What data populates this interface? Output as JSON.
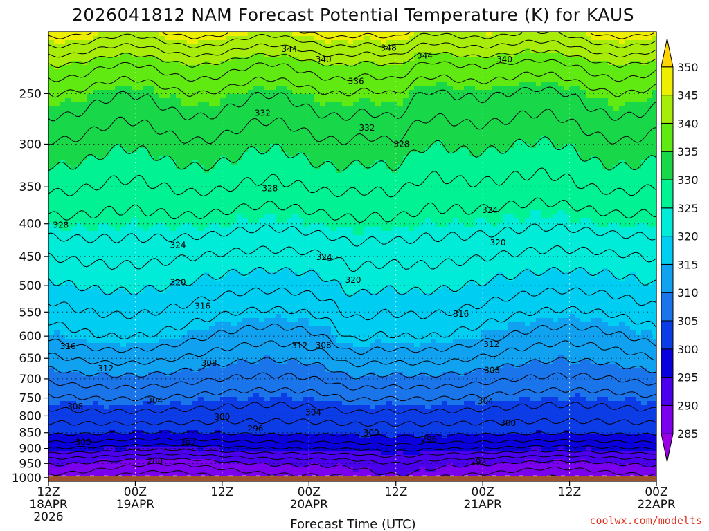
{
  "chart_data": {
    "type": "heatmap",
    "title": "2026041812 NAM Forecast Potential Temperature (K) for KAUS",
    "xlabel": "Forecast Time (UTC)",
    "ylabel": "",
    "x_ticks": [
      {
        "hours": 0,
        "line1": "12Z",
        "line2": "18APR",
        "line3": "2026"
      },
      {
        "hours": 12,
        "line1": "00Z",
        "line2": "19APR",
        "line3": ""
      },
      {
        "hours": 24,
        "line1": "12Z",
        "line2": "",
        "line3": ""
      },
      {
        "hours": 36,
        "line1": "00Z",
        "line2": "20APR",
        "line3": ""
      },
      {
        "hours": 48,
        "line1": "12Z",
        "line2": "",
        "line3": ""
      },
      {
        "hours": 60,
        "line1": "00Z",
        "line2": "21APR",
        "line3": ""
      },
      {
        "hours": 72,
        "line1": "12Z",
        "line2": "",
        "line3": ""
      },
      {
        "hours": 84,
        "line1": "00Z",
        "line2": "22APR",
        "line3": ""
      }
    ],
    "x_range_hours": [
      0,
      84
    ],
    "y_pressure_levels": [
      250,
      300,
      350,
      400,
      450,
      500,
      550,
      600,
      650,
      700,
      750,
      800,
      850,
      900,
      950,
      1000
    ],
    "y_range_hpa": [
      200,
      1013
    ],
    "log_pressure_axis": true,
    "surface_pressure_hpa": 994,
    "surface_color": "#a0522d",
    "colorbar": {
      "ticks": [
        350,
        345,
        340,
        335,
        330,
        325,
        320,
        315,
        310,
        305,
        300,
        295,
        290,
        285
      ],
      "bins": [
        {
          "min": 280,
          "max": 285,
          "color": "#9a00e6"
        },
        {
          "min": 285,
          "max": 290,
          "color": "#7a00ee"
        },
        {
          "min": 290,
          "max": 295,
          "color": "#4a00ea"
        },
        {
          "min": 295,
          "max": 300,
          "color": "#0a00dc"
        },
        {
          "min": 300,
          "max": 305,
          "color": "#0c3ce6"
        },
        {
          "min": 305,
          "max": 310,
          "color": "#1a74ea"
        },
        {
          "min": 310,
          "max": 315,
          "color": "#10a2f0"
        },
        {
          "min": 315,
          "max": 320,
          "color": "#00cdf2"
        },
        {
          "min": 320,
          "max": 325,
          "color": "#00ecd8"
        },
        {
          "min": 325,
          "max": 330,
          "color": "#00f292"
        },
        {
          "min": 330,
          "max": 335,
          "color": "#18d84a"
        },
        {
          "min": 335,
          "max": 340,
          "color": "#60ea12"
        },
        {
          "min": 340,
          "max": 345,
          "color": "#a8ec0a"
        },
        {
          "min": 345,
          "max": 350,
          "color": "#eeee00"
        },
        {
          "min": 350,
          "max": 355,
          "color": "#ffd400"
        }
      ]
    },
    "profile_1000_to_200": [
      {
        "p": 1000,
        "theta": 287.5
      },
      {
        "p": 975,
        "theta": 289
      },
      {
        "p": 950,
        "theta": 290.5
      },
      {
        "p": 925,
        "theta": 293
      },
      {
        "p": 900,
        "theta": 296
      },
      {
        "p": 875,
        "theta": 298.5
      },
      {
        "p": 850,
        "theta": 300.5
      },
      {
        "p": 800,
        "theta": 303
      },
      {
        "p": 750,
        "theta": 305.5
      },
      {
        "p": 700,
        "theta": 308.5
      },
      {
        "p": 650,
        "theta": 311.5
      },
      {
        "p": 600,
        "theta": 314.5
      },
      {
        "p": 550,
        "theta": 317
      },
      {
        "p": 500,
        "theta": 319.5
      },
      {
        "p": 450,
        "theta": 322
      },
      {
        "p": 400,
        "theta": 325
      },
      {
        "p": 350,
        "theta": 328
      },
      {
        "p": 300,
        "theta": 331
      },
      {
        "p": 250,
        "theta": 335
      },
      {
        "p": 225,
        "theta": 339
      },
      {
        "p": 200,
        "theta": 346
      }
    ],
    "contour_labels": [
      {
        "text": "344",
        "h": 33.3,
        "p": 213
      },
      {
        "text": "348",
        "h": 47.0,
        "p": 212
      },
      {
        "text": "344",
        "h": 52.0,
        "p": 218
      },
      {
        "text": "340",
        "h": 38.0,
        "p": 221
      },
      {
        "text": "340",
        "h": 63.0,
        "p": 221
      },
      {
        "text": "336",
        "h": 42.5,
        "p": 239
      },
      {
        "text": "332",
        "h": 29.6,
        "p": 268
      },
      {
        "text": "332",
        "h": 44.0,
        "p": 283
      },
      {
        "text": "328",
        "h": 48.8,
        "p": 300
      },
      {
        "text": "328",
        "h": 30.6,
        "p": 352
      },
      {
        "text": "328",
        "h": 1.7,
        "p": 402
      },
      {
        "text": "324",
        "h": 61.0,
        "p": 381
      },
      {
        "text": "324",
        "h": 17.9,
        "p": 432
      },
      {
        "text": "324",
        "h": 38.1,
        "p": 451
      },
      {
        "text": "320",
        "h": 62.1,
        "p": 428
      },
      {
        "text": "320",
        "h": 17.9,
        "p": 494
      },
      {
        "text": "320",
        "h": 42.1,
        "p": 490
      },
      {
        "text": "316",
        "h": 21.3,
        "p": 538
      },
      {
        "text": "316",
        "h": 57.0,
        "p": 554
      },
      {
        "text": "316",
        "h": 2.7,
        "p": 623
      },
      {
        "text": "312",
        "h": 34.7,
        "p": 621
      },
      {
        "text": "312",
        "h": 61.2,
        "p": 618
      },
      {
        "text": "312",
        "h": 7.9,
        "p": 674
      },
      {
        "text": "308",
        "h": 38.0,
        "p": 620
      },
      {
        "text": "308",
        "h": 22.2,
        "p": 661
      },
      {
        "text": "308",
        "h": 61.3,
        "p": 679
      },
      {
        "text": "308",
        "h": 3.7,
        "p": 774
      },
      {
        "text": "304",
        "h": 14.7,
        "p": 757
      },
      {
        "text": "304",
        "h": 36.6,
        "p": 790
      },
      {
        "text": "304",
        "h": 60.4,
        "p": 758
      },
      {
        "text": "300",
        "h": 24.0,
        "p": 803
      },
      {
        "text": "300",
        "h": 4.8,
        "p": 880
      },
      {
        "text": "300",
        "h": 44.6,
        "p": 851
      },
      {
        "text": "300",
        "h": 63.5,
        "p": 821
      },
      {
        "text": "296",
        "h": 28.6,
        "p": 838
      },
      {
        "text": "296",
        "h": 52.6,
        "p": 871
      },
      {
        "text": "292",
        "h": 19.3,
        "p": 883
      },
      {
        "text": "292",
        "h": 59.4,
        "p": 945
      },
      {
        "text": "288",
        "h": 14.7,
        "p": 941
      }
    ]
  },
  "credit": "coolwx.com/modelts"
}
